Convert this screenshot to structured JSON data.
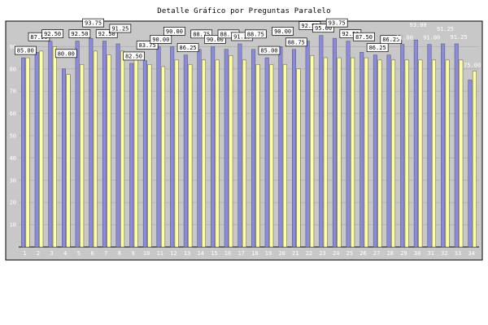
{
  "chart_data": {
    "type": "bar",
    "title": "Detalle Gráfico por Preguntas Paralelo",
    "categories": [
      "1",
      "2",
      "3",
      "4",
      "5",
      "6",
      "7",
      "8",
      "9",
      "10",
      "11",
      "12",
      "13",
      "14",
      "15",
      "16",
      "17",
      "18",
      "19",
      "20",
      "21",
      "22",
      "23",
      "24",
      "25",
      "26",
      "27",
      "28",
      "29",
      "30",
      "31",
      "32",
      "33",
      "34"
    ],
    "ylim": [
      0,
      100
    ],
    "yticks": [
      10,
      20,
      30,
      40,
      50,
      60,
      70,
      80,
      90
    ],
    "grid": true,
    "legend": "none",
    "series": [
      {
        "color": "#8a8ae0",
        "values": [
          85.0,
          87.5,
          92.5,
          80.0,
          92.5,
          93.75,
          92.5,
          91.25,
          82.5,
          83.75,
          90.0,
          90.0,
          86.25,
          88.75,
          90.0,
          88.75,
          91.25,
          88.75,
          85.0,
          90.0,
          88.75,
          92.5,
          95.0,
          93.75,
          92.5,
          87.5,
          86.25,
          86.25,
          91.0,
          93.0,
          91.0,
          91.25,
          91.25,
          75.0
        ]
      },
      {
        "color": "#ffffa0",
        "values": [
          85.0,
          88.0,
          90.0,
          77.47,
          82.0,
          88.0,
          86.3,
          88.0,
          84.0,
          82.0,
          81.05,
          84.0,
          82.0,
          84.0,
          84.0,
          86.0,
          84.0,
          82.0,
          82.0,
          82.0,
          80.0,
          86.0,
          85.04,
          85.0,
          85.0,
          85.0,
          84.0,
          84.0,
          84.0,
          84.0,
          84.0,
          84.0,
          84.0,
          79.07
        ]
      }
    ],
    "data_labels": [
      {
        "text": "85.00",
        "boxed": true
      },
      {
        "text": "87.50",
        "boxed": true
      },
      {
        "text": "92.50",
        "boxed": true
      },
      {
        "text": "80.00",
        "boxed": true
      },
      {
        "text": "92.50",
        "boxed": true
      },
      {
        "text": "93.75",
        "boxed": true
      },
      {
        "text": "92.50",
        "boxed": true
      },
      {
        "text": "91.25",
        "boxed": true
      },
      {
        "text": "82.50",
        "boxed": true
      },
      {
        "text": "83.75",
        "boxed": true
      },
      {
        "text": "90.00",
        "boxed": true
      },
      {
        "text": "90.00",
        "boxed": true
      },
      {
        "text": "86.25",
        "boxed": true
      },
      {
        "text": "88.75",
        "boxed": true
      },
      {
        "text": "90.00",
        "boxed": true
      },
      {
        "text": "88.75",
        "boxed": true
      },
      {
        "text": "91.25",
        "boxed": true
      },
      {
        "text": "88.75",
        "boxed": true
      },
      {
        "text": "85.00",
        "boxed": true
      },
      {
        "text": "90.00",
        "boxed": true
      },
      {
        "text": "88.75",
        "boxed": true
      },
      {
        "text": "92.50",
        "boxed": true
      },
      {
        "text": "95.00",
        "boxed": true
      },
      {
        "text": "93.75",
        "boxed": true
      },
      {
        "text": "92.50",
        "boxed": true
      },
      {
        "text": "87.50",
        "boxed": true
      },
      {
        "text": "86.25",
        "boxed": true
      },
      {
        "text": "86.25",
        "boxed": true
      },
      {
        "text": "91.00",
        "boxed": false
      },
      {
        "text": "93.00",
        "boxed": false
      },
      {
        "text": "91.00",
        "boxed": false
      },
      {
        "text": "91.25",
        "boxed": false
      },
      {
        "text": "91.25",
        "boxed": false
      },
      {
        "text": "75.00",
        "boxed": false
      }
    ]
  }
}
